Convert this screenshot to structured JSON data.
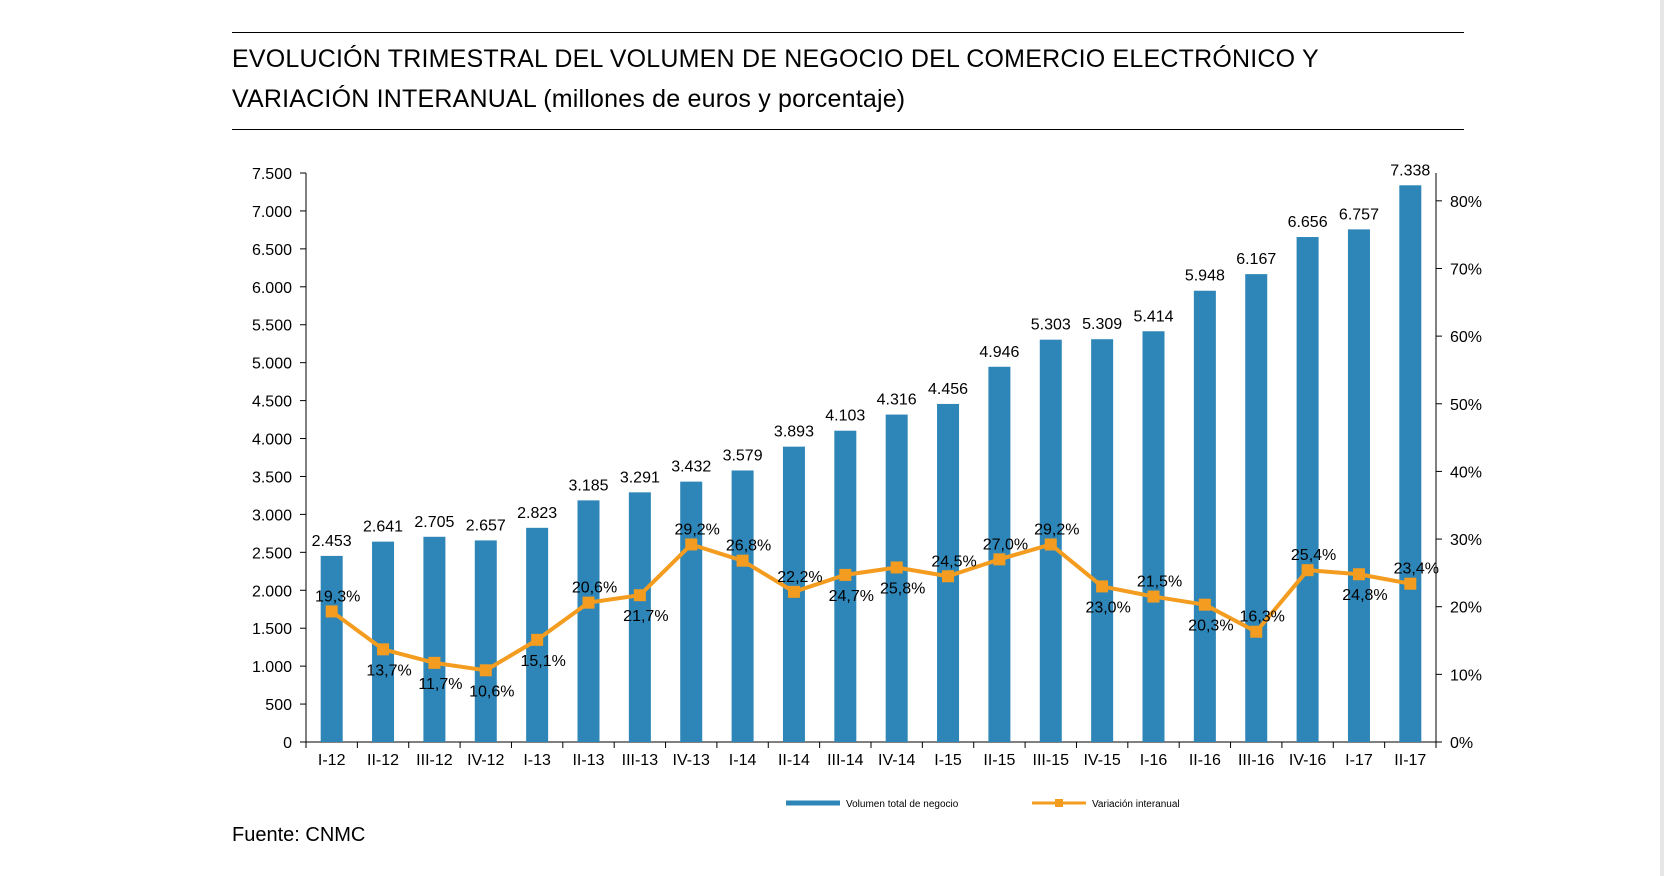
{
  "title": {
    "line1": "EVOLUCIÓN TRIMESTRAL DEL VOLUMEN DE NEGOCIO DEL COMERCIO ELECTRÓNICO Y",
    "line2_main": "VARIACIÓN INTERANUAL",
    "line2_sub": " (millones de euros y porcentaje)"
  },
  "source": "Fuente: CNMC",
  "chart_data": {
    "type": "bar",
    "categories": [
      "I-12",
      "II-12",
      "III-12",
      "IV-12",
      "I-13",
      "II-13",
      "III-13",
      "IV-13",
      "I-14",
      "II-14",
      "III-14",
      "IV-14",
      "I-15",
      "II-15",
      "III-15",
      "IV-15",
      "I-16",
      "II-16",
      "III-16",
      "IV-16",
      "I-17",
      "II-17"
    ],
    "series": [
      {
        "name": "Volumen total de negocio",
        "type": "bar",
        "axis": "left",
        "color": "#2e86b8",
        "values": [
          2453,
          2641,
          2705,
          2657,
          2823,
          3185,
          3291,
          3432,
          3579,
          3893,
          4103,
          4316,
          4456,
          4946,
          5303,
          5309,
          5414,
          5948,
          6167,
          6656,
          6757,
          7338
        ],
        "labels": [
          "2.453",
          "2.641",
          "2.705",
          "2.657",
          "2.823",
          "3.185",
          "3.291",
          "3.432",
          "3.579",
          "3.893",
          "4.103",
          "4.316",
          "4.456",
          "4.946",
          "5.303",
          "5.309",
          "5.414",
          "5.948",
          "6.167",
          "6.656",
          "6.757",
          "7.338"
        ]
      },
      {
        "name": "Variación interanual",
        "type": "line",
        "axis": "right",
        "color": "#f39c1f",
        "values": [
          19.3,
          13.7,
          11.7,
          10.6,
          15.1,
          20.6,
          21.7,
          29.2,
          26.8,
          22.2,
          24.7,
          25.8,
          24.5,
          27.0,
          29.2,
          23.0,
          21.5,
          20.3,
          16.3,
          25.4,
          24.8,
          23.4
        ],
        "labels": [
          "19,3%",
          "13,7%",
          "11,7%",
          "10,6%",
          "15,1%",
          "20,6%",
          "21,7%",
          "29,2%",
          "26,8%",
          "22,2%",
          "24,7%",
          "25,8%",
          "24,5%",
          "27,0%",
          "29,2%",
          "23,0%",
          "21,5%",
          "20,3%",
          "16,3%",
          "25,4%",
          "24,8%",
          "23,4%"
        ],
        "label_pos": [
          "above",
          "below",
          "below",
          "below",
          "below",
          "above",
          "below",
          "above",
          "above",
          "above",
          "below",
          "below",
          "above",
          "above",
          "above",
          "below",
          "above",
          "below",
          "above",
          "above",
          "below",
          "above"
        ]
      }
    ],
    "y_left": {
      "range": [
        0,
        7500
      ],
      "ticks": [
        0,
        500,
        1000,
        1500,
        2000,
        2500,
        3000,
        3500,
        4000,
        4500,
        5000,
        5500,
        6000,
        6500,
        7000,
        7500
      ],
      "tick_labels": [
        "0",
        "500",
        "1.000",
        "1.500",
        "2.000",
        "2.500",
        "3.000",
        "3.500",
        "4.000",
        "4.500",
        "5.000",
        "5.500",
        "6.000",
        "6.500",
        "7.000",
        "7.500"
      ]
    },
    "y_right": {
      "range": [
        0,
        85
      ],
      "ticks": [
        0,
        10,
        20,
        30,
        40,
        50,
        60,
        70,
        80
      ],
      "tick_labels": [
        "0%",
        "10%",
        "20%",
        "30%",
        "40%",
        "50%",
        "60%",
        "70%",
        "80%"
      ]
    },
    "legend_position": "bottom-center",
    "grid": false
  }
}
